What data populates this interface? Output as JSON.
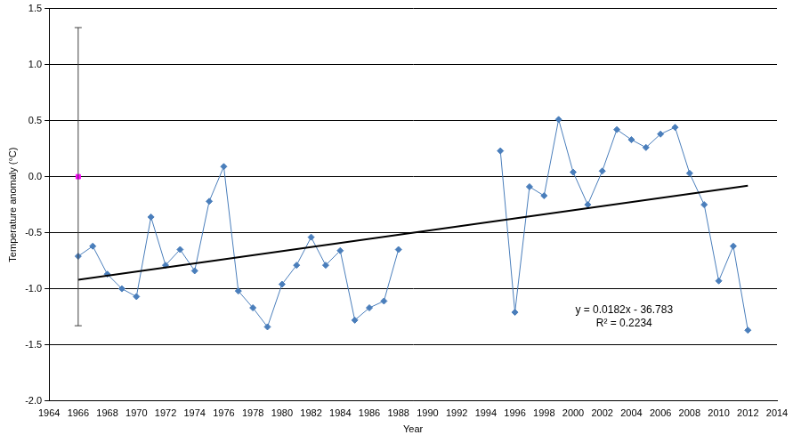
{
  "chart_data": {
    "type": "line",
    "x_label": "Year",
    "y_label": "Temperature anomaly (°C)",
    "x": [
      1966,
      1967,
      1968,
      1969,
      1970,
      1971,
      1972,
      1973,
      1974,
      1975,
      1976,
      1977,
      1978,
      1979,
      1980,
      1981,
      1982,
      1983,
      1984,
      1985,
      1986,
      1987,
      1988,
      1989,
      1990,
      1991,
      1992,
      1993,
      1994,
      1995,
      1996,
      1997,
      1998,
      1999,
      2000,
      2001,
      2002,
      2003,
      2004,
      2005,
      2006,
      2007,
      2008,
      2009,
      2010,
      2011,
      2012
    ],
    "values": [
      -0.71,
      -0.62,
      -0.87,
      -1.0,
      -1.07,
      -0.36,
      -0.79,
      -0.65,
      -0.84,
      -0.22,
      0.09,
      -1.02,
      -1.17,
      -1.34,
      -0.96,
      -0.79,
      -0.54,
      -0.79,
      -0.66,
      -1.28,
      -1.17,
      -1.11,
      -0.65,
      null,
      null,
      null,
      null,
      null,
      null,
      0.23,
      -1.21,
      -0.09,
      -0.17,
      0.51,
      0.04,
      -0.25,
      0.05,
      0.42,
      0.33,
      0.26,
      0.38,
      0.44,
      0.03,
      -0.25,
      -0.93,
      -0.62,
      -1.37
    ],
    "color": "#4a7ebb",
    "marker": "diamond",
    "trend": {
      "x": [
        1966,
        2012
      ],
      "values": [
        -0.92,
        -0.08
      ],
      "color": "#000000"
    },
    "reference": {
      "x": 1966,
      "value": 0,
      "error": 1.33,
      "color": "#ff00ff",
      "marker": "square"
    },
    "annotations": [
      "y = 0.0182x - 36.783",
      "R² = 0.2234"
    ],
    "xlim": [
      1964,
      2014
    ],
    "xticks": [
      1964,
      1966,
      1968,
      1970,
      1972,
      1974,
      1976,
      1978,
      1980,
      1982,
      1984,
      1986,
      1988,
      1990,
      1992,
      1994,
      1996,
      1998,
      2000,
      2002,
      2004,
      2006,
      2008,
      2010,
      2012,
      2014
    ],
    "ylim": [
      -2,
      1.5
    ],
    "yticks": [
      {
        "value": -2,
        "label": "-2.0"
      },
      -1.5,
      {
        "value": -1,
        "label": "-1.0"
      },
      -0.5,
      {
        "value": 0,
        "label": "0.0"
      },
      0.5,
      {
        "value": 1,
        "label": "1.0"
      },
      1.5
    ],
    "grid": "y",
    "legend": false
  }
}
